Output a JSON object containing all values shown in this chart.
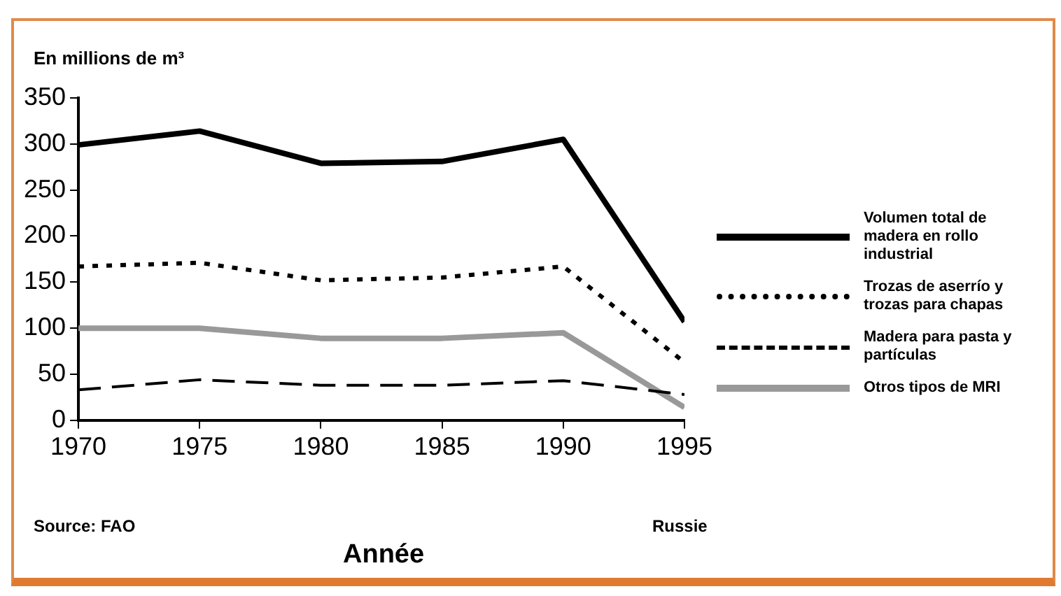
{
  "chart_data": {
    "type": "line",
    "ylabel": "En millions de m³",
    "xlabel": "Année",
    "subtitle": "Russie",
    "annotations": [
      "Source: FAO"
    ],
    "x": [
      1970,
      1975,
      1980,
      1985,
      1990,
      1995
    ],
    "xlim": [
      1970,
      1995
    ],
    "xticks": [
      1970,
      1975,
      1980,
      1985,
      1990,
      1995
    ],
    "ylim": [
      0,
      350
    ],
    "yticks": [
      0,
      50,
      100,
      150,
      200,
      250,
      300,
      350
    ],
    "grid": false,
    "legend": "right",
    "marker": "none",
    "series": [
      {
        "name": "Volumen total de madera en rollo industrial",
        "color": "#000000",
        "line_style": "solid",
        "values": [
          299,
          314,
          279,
          281,
          305,
          107
        ]
      },
      {
        "name": "Trozas de aserrío y trozas para chapas",
        "color": "#000000",
        "line_style": "dotted",
        "values": [
          167,
          171,
          152,
          155,
          167,
          63
        ]
      },
      {
        "name": "Madera para pasta y partículas",
        "color": "#000000",
        "line_style": "dashed",
        "values": [
          33,
          44,
          38,
          38,
          43,
          28
        ]
      },
      {
        "name": "Otros tipos de MRI",
        "color": "#999999",
        "line_style": "solid",
        "values": [
          100,
          100,
          89,
          89,
          95,
          14
        ]
      }
    ]
  }
}
